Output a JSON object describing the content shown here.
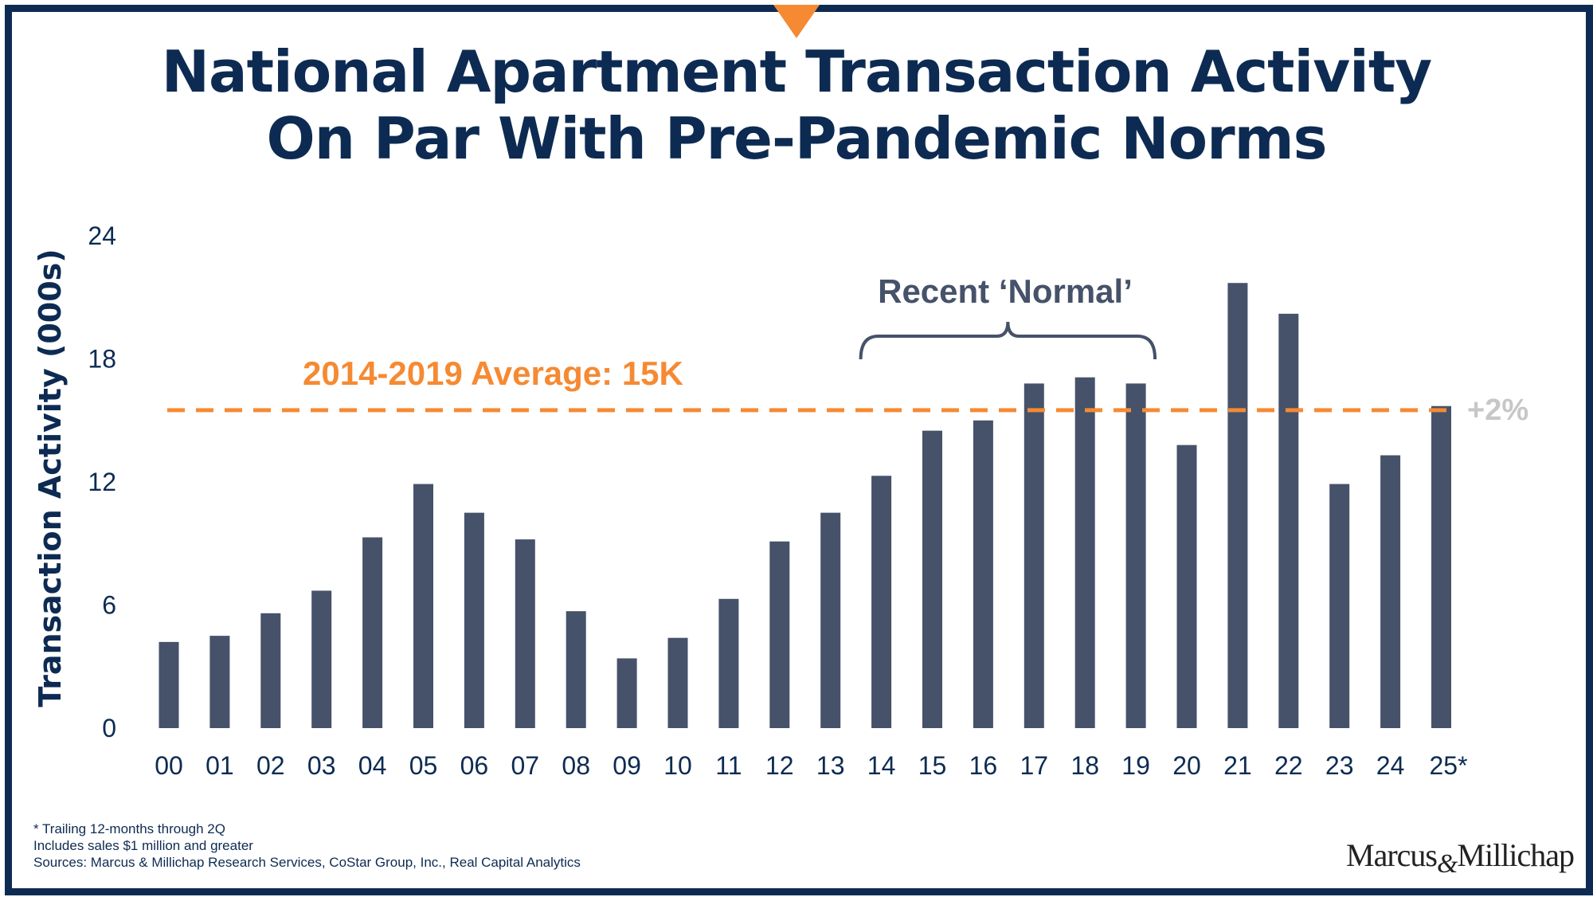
{
  "title_line1": "National Apartment Transaction Activity",
  "title_line2": "On Par With Pre-Pandemic Norms",
  "footnotes": {
    "line1": "* Trailing 12-months through 2Q",
    "line2": "Includes sales $1 million and greater",
    "line3": "Sources: Marcus & Millichap Research Services, CoStar Group, Inc., Real Capital Analytics"
  },
  "logo": {
    "left": "Marcus",
    "amp": "&",
    "right": "Millichap"
  },
  "colors": {
    "bar": "#46526a",
    "average_line": "#f58a33",
    "frame": "#0d2b52",
    "annotation_gray": "#c7c7c7"
  },
  "chart_data": {
    "type": "bar",
    "ylabel": "Transaction Activity (000s)",
    "xlabel": "",
    "ylim": [
      0,
      24
    ],
    "yticks": [
      "0",
      "6",
      "12",
      "18",
      "24"
    ],
    "grid": false,
    "categories": [
      "00",
      "01",
      "02",
      "03",
      "04",
      "05",
      "06",
      "07",
      "08",
      "09",
      "10",
      "11",
      "12",
      "13",
      "14",
      "15",
      "16",
      "17",
      "18",
      "19",
      "20",
      "21",
      "22",
      "23",
      "24",
      "25*"
    ],
    "values": [
      4.2,
      4.5,
      5.6,
      6.7,
      9.3,
      11.9,
      10.5,
      9.2,
      5.7,
      3.4,
      4.4,
      6.3,
      9.1,
      10.5,
      12.3,
      14.5,
      15.0,
      16.8,
      17.1,
      16.8,
      13.8,
      21.7,
      20.2,
      11.9,
      13.3,
      15.7
    ],
    "average_line": {
      "label": "2014-2019 Average: 15K",
      "value": 15.5
    },
    "bracket": {
      "label": "Recent ‘Normal’",
      "from": "14",
      "to": "19"
    },
    "change_label": "+2%"
  }
}
